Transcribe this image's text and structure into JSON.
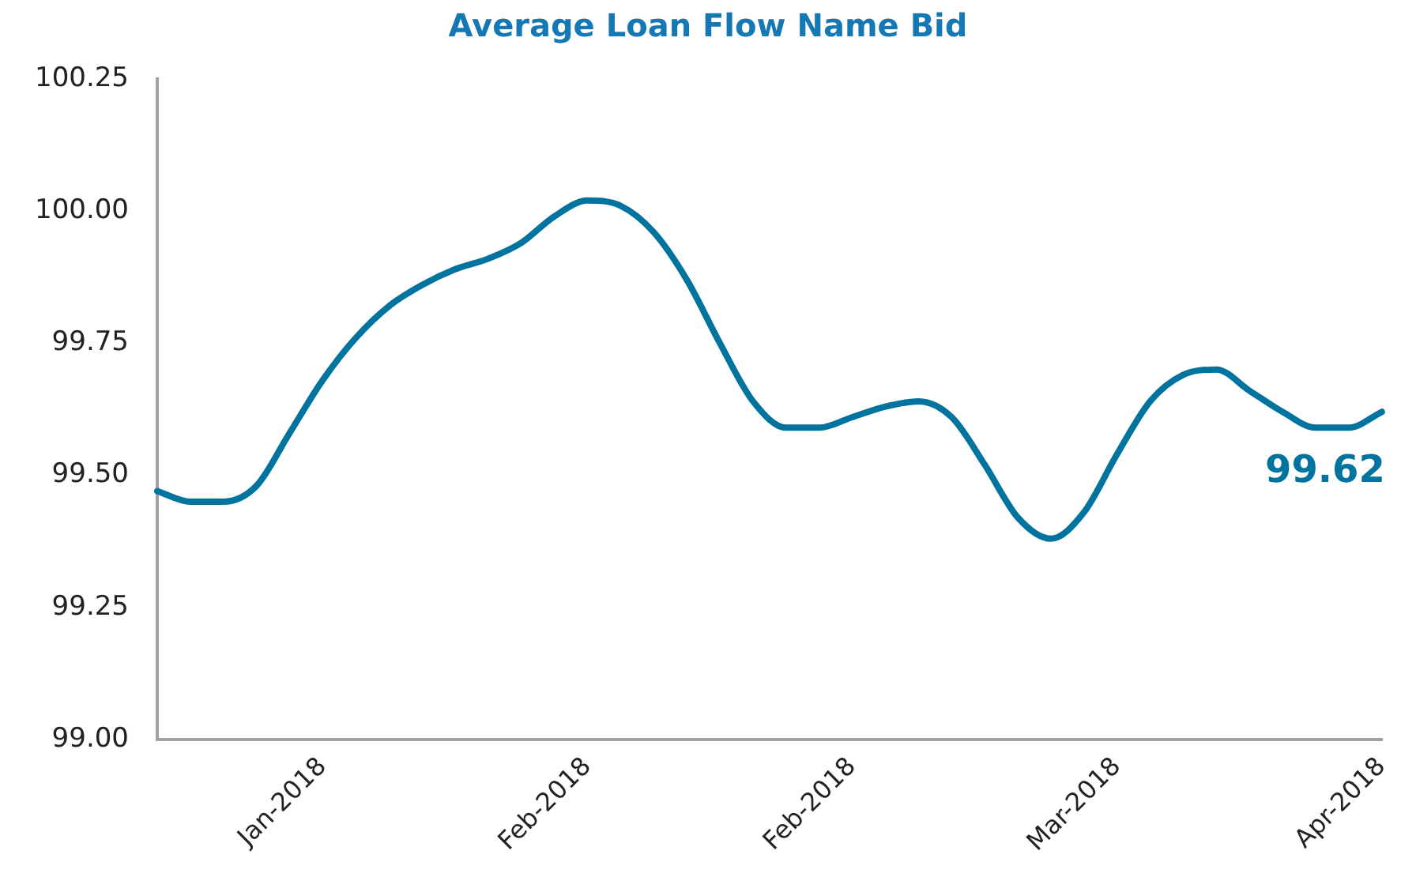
{
  "chart_data": {
    "type": "line",
    "title": "Average Loan Flow Name Bid",
    "categories": [
      null,
      null,
      null,
      null,
      null,
      "Jan-2018",
      null,
      null,
      null,
      null,
      null,
      null,
      null,
      "Feb-2018",
      null,
      null,
      null,
      null,
      null,
      null,
      null,
      "Feb-2018",
      null,
      null,
      null,
      null,
      null,
      null,
      null,
      "Mar-2018",
      null,
      null,
      null,
      null,
      null,
      null,
      null,
      "Apr-2018"
    ],
    "series": [
      {
        "color": "#00739f",
        "values": [
          99.47,
          99.45,
          99.45,
          99.48,
          99.58,
          99.68,
          99.76,
          99.82,
          99.86,
          99.89,
          99.91,
          99.94,
          99.99,
          100.02,
          100.01,
          99.96,
          99.87,
          99.75,
          99.64,
          99.59,
          99.59,
          99.61,
          99.63,
          99.64,
          99.61,
          99.52,
          99.42,
          99.38,
          99.43,
          99.54,
          99.64,
          99.69,
          99.7,
          99.66,
          99.62,
          99.59,
          99.59,
          99.62
        ]
      }
    ],
    "ylim": [
      99,
      100.25
    ],
    "yticks": [
      {
        "value": 99,
        "label": "99.00"
      },
      {
        "value": 99.25,
        "label": "99.25"
      },
      {
        "value": 99.5,
        "label": "99.50"
      },
      {
        "value": 99.75,
        "label": "99.75"
      },
      {
        "value": 100,
        "label": "100.00"
      },
      {
        "value": 100.25,
        "label": "100.25"
      }
    ],
    "annotations": [
      {
        "text": "99.62",
        "x": "Apr-2018",
        "y": 99.62
      }
    ],
    "grid": false,
    "legend": false,
    "marker": "none",
    "line_style": "solid"
  }
}
